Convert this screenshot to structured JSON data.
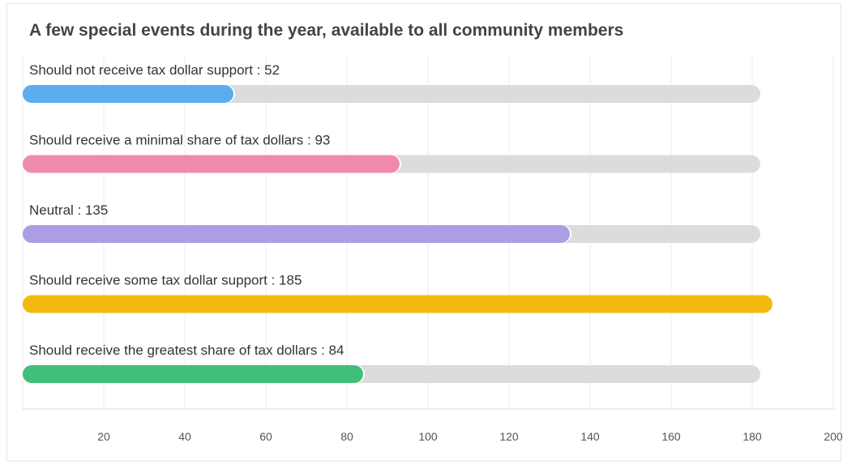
{
  "chart_data": {
    "type": "bar",
    "orientation": "horizontal",
    "title": "A few special events during the year, available to all community members",
    "categories": [
      "Should not receive tax dollar support",
      "Should receive a minimal share of tax dollars",
      "Neutral",
      "Should receive some tax dollar support",
      "Should receive the greatest share of tax dollars"
    ],
    "values": [
      52,
      93,
      135,
      185,
      84
    ],
    "labels": [
      "Should not receive tax dollar support : 52",
      "Should receive a minimal share of tax dollars : 93",
      "Neutral : 135",
      "Should receive some tax dollar support : 185",
      "Should receive the greatest share of tax dollars : 84"
    ],
    "colors": [
      "#5aadf0",
      "#f08aad",
      "#ac9de6",
      "#f2b90f",
      "#3fbf7a"
    ],
    "track_color": "#dcdcdc",
    "track_max": 182,
    "xlim": [
      0,
      200
    ],
    "xticks": [
      20,
      40,
      60,
      80,
      100,
      120,
      140,
      160,
      180,
      200
    ],
    "xtick_labels": [
      "20",
      "40",
      "60",
      "80",
      "100",
      "120",
      "140",
      "160",
      "180",
      "200"
    ],
    "grid": true,
    "legend": "none"
  }
}
